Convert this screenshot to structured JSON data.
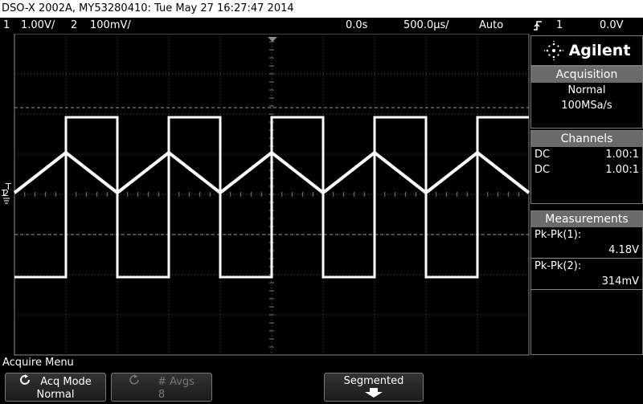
{
  "title_bar": "DSO-X 2002A, MY53280410: Tue May 27 16:27:47 2014",
  "status": {
    "ch1_num": "1",
    "ch1_scale": "1.00V/",
    "ch2_num": "2",
    "ch2_scale": "100mV/",
    "time_delay": "0.0s",
    "time_scale": "500.0µs/",
    "trigger_mode": "Auto",
    "trigger_slope_icon": "rising-edge-icon",
    "trigger_source": "1",
    "trigger_level": "0.0V"
  },
  "markers": {
    "trigger_marker": "T",
    "ch1_marker": "1",
    "ch2_marker": "2"
  },
  "panel": {
    "brand": "Agilent",
    "acquisition": {
      "header": "Acquisition",
      "mode": "Normal",
      "rate": "100MSa/s"
    },
    "channels": {
      "header": "Channels",
      "items": [
        {
          "coupling": "DC",
          "probe": "1.00:1"
        },
        {
          "coupling": "DC",
          "probe": "1.00:1"
        }
      ]
    },
    "measurements": {
      "header": "Measurements",
      "items": [
        {
          "label": "Pk-Pk(1):",
          "value": "4.18V"
        },
        {
          "label": "Pk-Pk(2):",
          "value": "314mV"
        }
      ]
    }
  },
  "menu": {
    "title": "Acquire Menu",
    "softkeys": [
      {
        "label": "Acq Mode",
        "value": "Normal",
        "icon": "rotate-knob-icon"
      },
      {
        "label": "# Avgs",
        "value": "8",
        "icon": "rotate-knob-icon"
      },
      {
        "label": "Segmented",
        "icon": "down-arrow-icon"
      }
    ]
  },
  "colors": {
    "trace": "#ffffff",
    "header_gray": "#6b6b6b",
    "grid": "#5a5a5a"
  }
}
